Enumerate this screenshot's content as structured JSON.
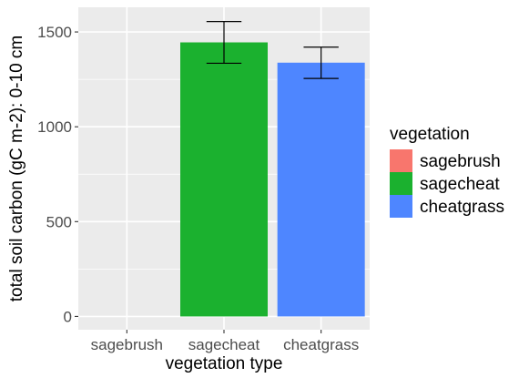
{
  "chart_data": {
    "type": "bar",
    "categories": [
      "sagebrush",
      "sagecheat",
      "cheatgrass"
    ],
    "values": [
      0,
      1445,
      1338
    ],
    "errors": [
      {
        "low": null,
        "high": null
      },
      {
        "low": 1335,
        "high": 1555
      },
      {
        "low": 1255,
        "high": 1420
      }
    ],
    "colors": [
      "#F8766D",
      "#1BB12F",
      "#4E86FF"
    ],
    "title": "",
    "xlabel": "vegetation type",
    "ylabel": "total soil carbon (gC m-2): 0-10 cm",
    "ylim": [
      -70,
      1630
    ],
    "yticks": [
      0,
      500,
      1000,
      1500
    ],
    "grid": true,
    "panel_background": "#EBEBEB",
    "legend": {
      "title": "vegetation",
      "position": "right",
      "entries": [
        "sagebrush",
        "sagecheat",
        "cheatgrass"
      ]
    }
  }
}
